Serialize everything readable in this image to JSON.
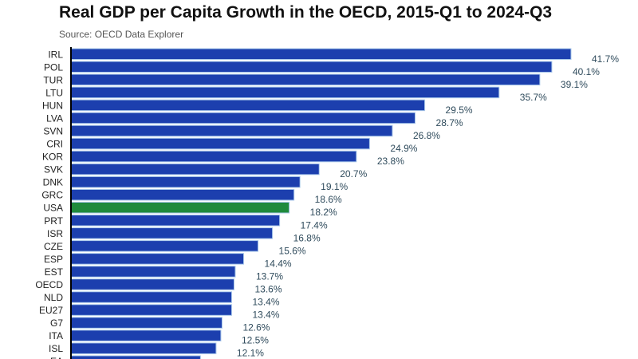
{
  "chart_data": {
    "type": "bar",
    "orientation": "horizontal",
    "title": "Real GDP per Capita Growth in the OECD, 2015-Q1 to 2024-Q3",
    "subtitle": "Source: OECD Data Explorer",
    "categories": [
      "IRL",
      "POL",
      "TUR",
      "LTU",
      "HUN",
      "LVA",
      "SVN",
      "CRI",
      "KOR",
      "SVK",
      "DNK",
      "GRC",
      "USA",
      "PRT",
      "ISR",
      "CZE",
      "ESP",
      "EST",
      "OECD",
      "NLD",
      "EU27",
      "G7",
      "ITA",
      "ISL",
      "EA"
    ],
    "values": [
      41.7,
      40.1,
      39.1,
      35.7,
      29.5,
      28.7,
      26.8,
      24.9,
      23.8,
      20.7,
      19.1,
      18.6,
      18.2,
      17.4,
      16.8,
      15.6,
      14.4,
      13.7,
      13.6,
      13.4,
      13.4,
      12.6,
      12.5,
      12.1,
      10.8
    ],
    "value_suffix": "%",
    "highlight": "USA",
    "colors": {
      "bar": "#1c3fae",
      "highlight": "#1f8a3c",
      "bar_edge": "#a9c8ea",
      "label": "#2f4b5c"
    },
    "xlabel": "",
    "ylabel": "",
    "xlim": [
      0,
      41.7
    ],
    "grid": false,
    "legend": "none"
  }
}
